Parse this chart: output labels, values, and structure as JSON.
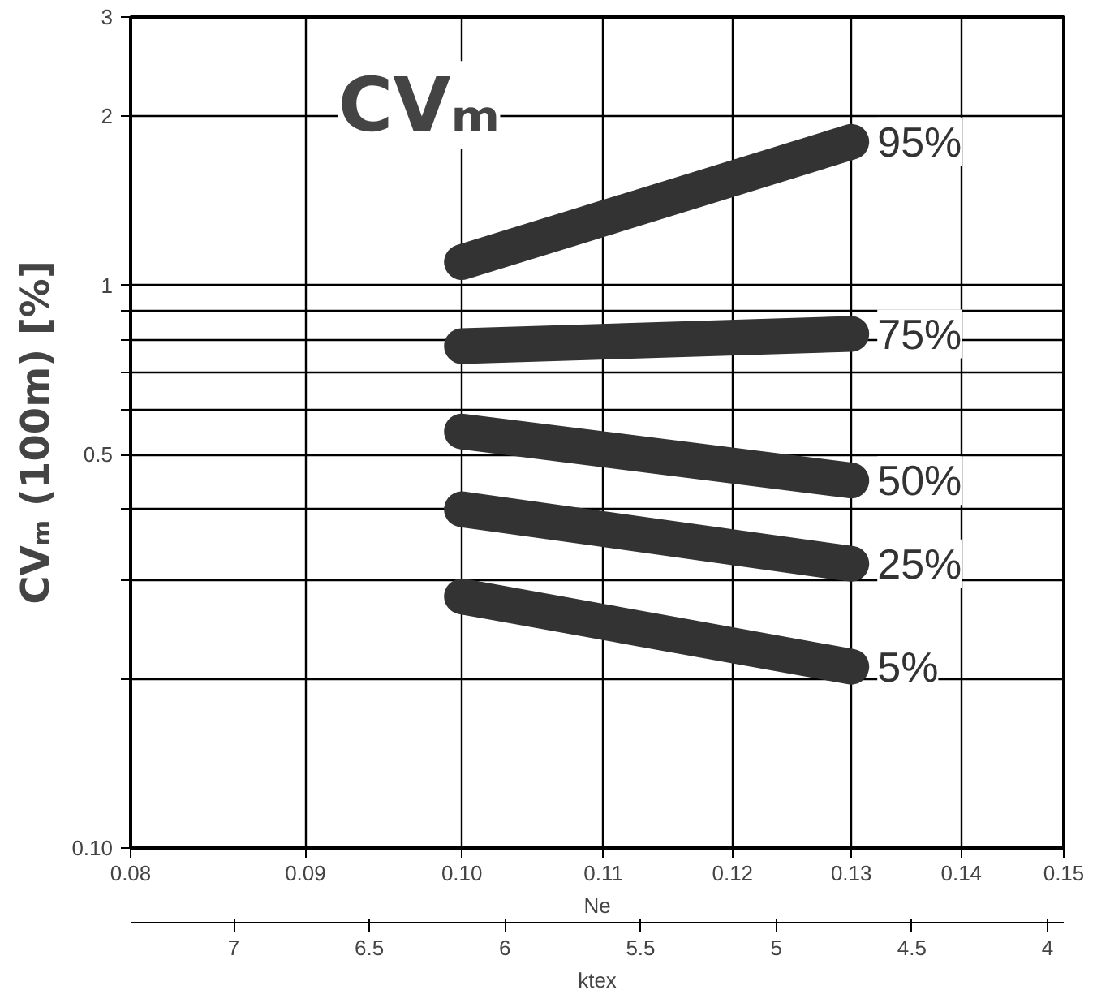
{
  "chart_data": {
    "type": "line",
    "title": "CVₘ",
    "ylabel": "CVₘ (100m) [%]",
    "xlabel": "Ne",
    "x2label": "ktex",
    "log": "xy",
    "grid": true,
    "line_style": "solid",
    "xlim": [
      0.08,
      0.15
    ],
    "xticks": [
      {
        "value": 0.08,
        "label": "0.08"
      },
      0.09,
      {
        "value": 0.1,
        "label": "0.10"
      },
      0.11,
      0.12,
      0.13,
      0.14,
      0.15
    ],
    "x2lim": [
      7.38,
      3.94
    ],
    "x2ticks": [
      7,
      6.5,
      6,
      5.5,
      5,
      4.5,
      4
    ],
    "ylim": [
      0.1,
      3
    ],
    "yticks": [
      {
        "value": 0.1,
        "label": "0.10"
      },
      {
        "value": 0.2,
        "label": null
      },
      {
        "value": 0.3,
        "label": null
      },
      {
        "value": 0.4,
        "label": null
      },
      0.5,
      {
        "value": 0.6,
        "label": null
      },
      {
        "value": 0.7,
        "label": null
      },
      {
        "value": 0.8,
        "label": null
      },
      {
        "value": 0.9,
        "label": null
      },
      1,
      2,
      3
    ],
    "x": [
      0.1,
      0.13
    ],
    "series": [
      {
        "name": "95%",
        "color": "#333333",
        "values": [
          1.1,
          1.8
        ]
      },
      {
        "name": "75%",
        "color": "#333333",
        "values": [
          0.78,
          0.82
        ]
      },
      {
        "name": "50%",
        "color": "#333333",
        "values": [
          0.55,
          0.45
        ]
      },
      {
        "name": "25%",
        "color": "#333333",
        "values": [
          0.4,
          0.32
        ]
      },
      {
        "name": "5%",
        "color": "#333333",
        "values": [
          0.28,
          0.21
        ]
      }
    ]
  }
}
